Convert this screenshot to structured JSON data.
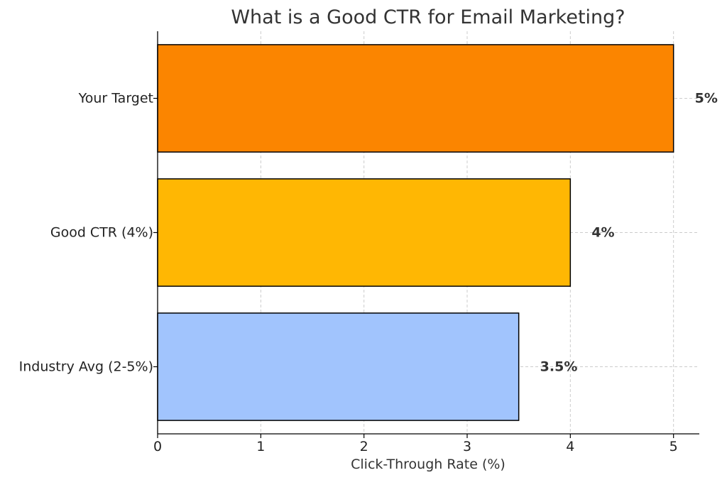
{
  "chart_data": {
    "type": "bar",
    "orientation": "horizontal",
    "title": "What is a Good CTR for Email Marketing?",
    "xlabel": "Click-Through Rate (%)",
    "ylabel": "",
    "xlim": [
      0,
      5.25
    ],
    "xticks": [
      0,
      1,
      2,
      3,
      4,
      5
    ],
    "grid": true,
    "categories": [
      "Industry Avg (2-5%)",
      "Good CTR (4%)",
      "Your Target"
    ],
    "values": [
      3.5,
      4,
      5
    ],
    "data_labels": [
      "3.5%",
      "4%",
      "5%"
    ],
    "colors": [
      "#a1c4fd",
      "#ffb703",
      "#fb8500"
    ]
  }
}
